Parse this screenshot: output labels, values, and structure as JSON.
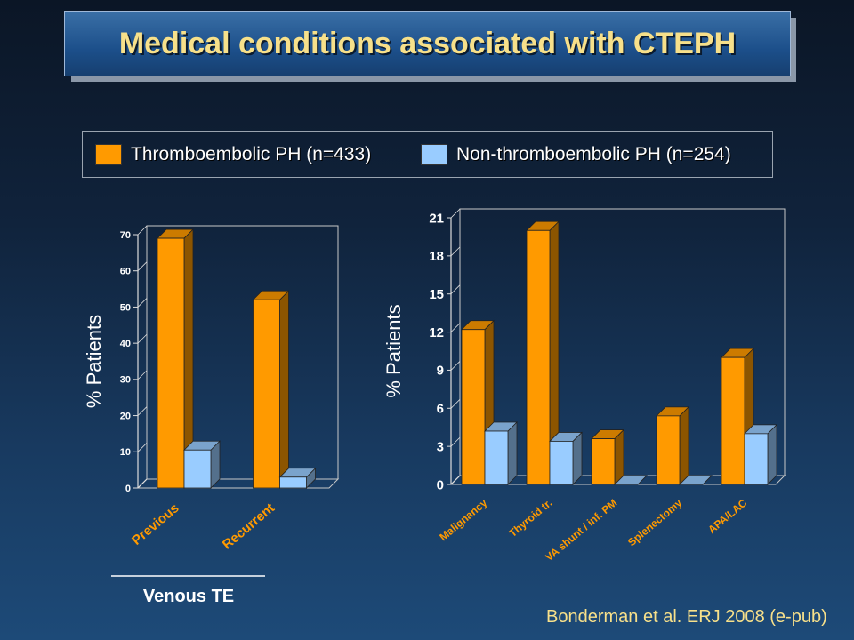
{
  "slide": {
    "title": "Medical conditions associated with CTEPH",
    "citation": "Bonderman et al. ERJ 2008 (e-pub)"
  },
  "legend": [
    {
      "label": "Thromboembolic PH (n=433)",
      "color": "#ff9a00"
    },
    {
      "label": "Non-thromboembolic PH (n=254)",
      "color": "#99ccff"
    }
  ],
  "colors": {
    "series1": "#ff9a00",
    "series2": "#99ccff"
  },
  "chart_data": [
    {
      "type": "bar",
      "ylabel": "% Patients",
      "xlabel": "Venous TE",
      "categories": [
        "Previous",
        "Recurrent"
      ],
      "series": [
        {
          "name": "Thromboembolic PH (n=433)",
          "values": [
            69,
            52
          ]
        },
        {
          "name": "Non-thromboembolic PH (n=254)",
          "values": [
            10.5,
            3
          ]
        }
      ],
      "ylim": [
        0,
        75
      ],
      "yticks": [
        0,
        10,
        20,
        30,
        40,
        50,
        60,
        70
      ]
    },
    {
      "type": "bar",
      "ylabel": "% Patients",
      "xlabel": "",
      "categories": [
        "Malignancy",
        "Thyroid tr.",
        "VA shunt / inf. PM",
        "Splenectomy",
        "APA/LAC"
      ],
      "series": [
        {
          "name": "Thromboembolic PH (n=433)",
          "values": [
            12.2,
            20,
            3.6,
            5.4,
            10
          ]
        },
        {
          "name": "Non-thromboembolic PH (n=254)",
          "values": [
            4.2,
            3.4,
            0,
            0,
            4
          ]
        }
      ],
      "ylim": [
        0,
        21
      ],
      "yticks": [
        0,
        3,
        6,
        9,
        12,
        15,
        18,
        21
      ]
    }
  ]
}
